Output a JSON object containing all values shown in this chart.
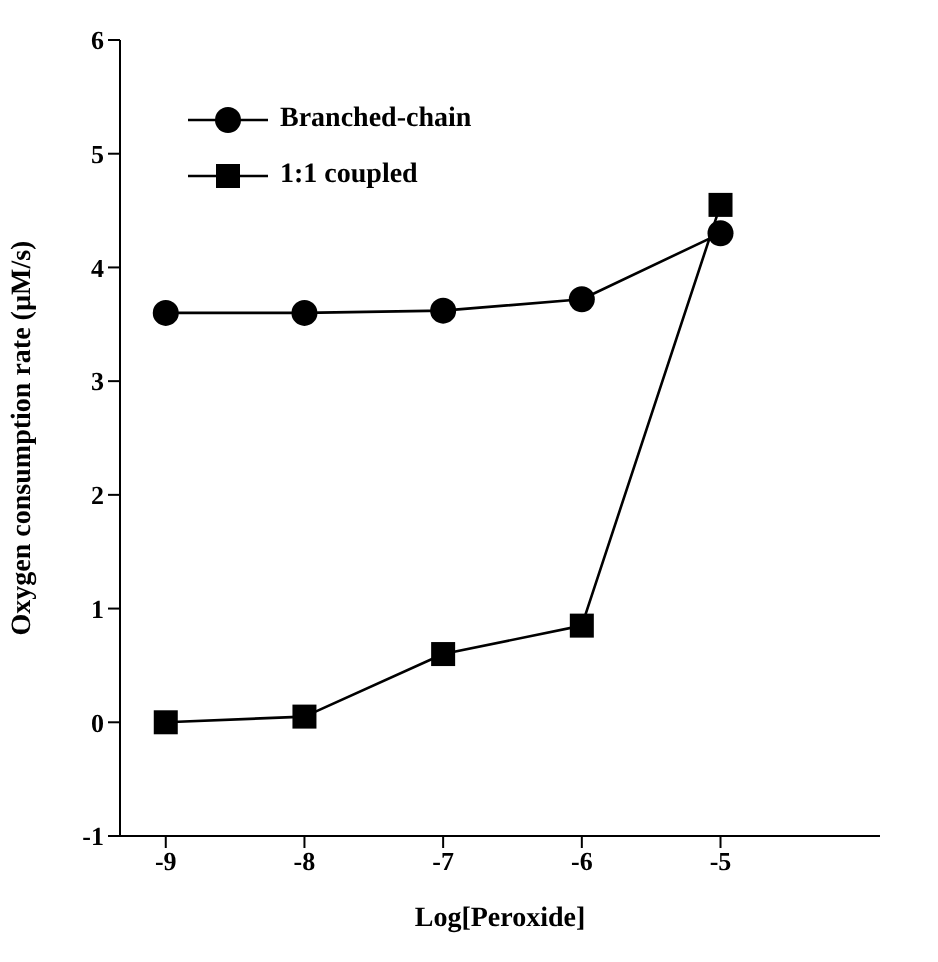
{
  "chart_data": {
    "type": "line",
    "xlabel": "Log[Peroxide]",
    "ylabel": "Oxygen consumption rate (µM/s)",
    "x": [
      -9,
      -8,
      -7,
      -6,
      -5
    ],
    "series": [
      {
        "name": "Branched-chain",
        "color": "#000000",
        "marker": "circle",
        "values": [
          3.6,
          3.6,
          3.62,
          3.72,
          4.3
        ]
      },
      {
        "name": "1:1 coupled",
        "color": "#000000",
        "marker": "square",
        "values": [
          0,
          0.05,
          0.6,
          0.85,
          4.55
        ]
      }
    ],
    "xlim": [
      -9.33,
      -3.85
    ],
    "xticks": [
      -9,
      -8,
      -7,
      -6,
      -5
    ],
    "ylim": [
      -1,
      6
    ],
    "yticks": [
      -1,
      0,
      1,
      2,
      3,
      4,
      5,
      6
    ],
    "grid": false,
    "legend": "top left",
    "line_style": "solid"
  }
}
